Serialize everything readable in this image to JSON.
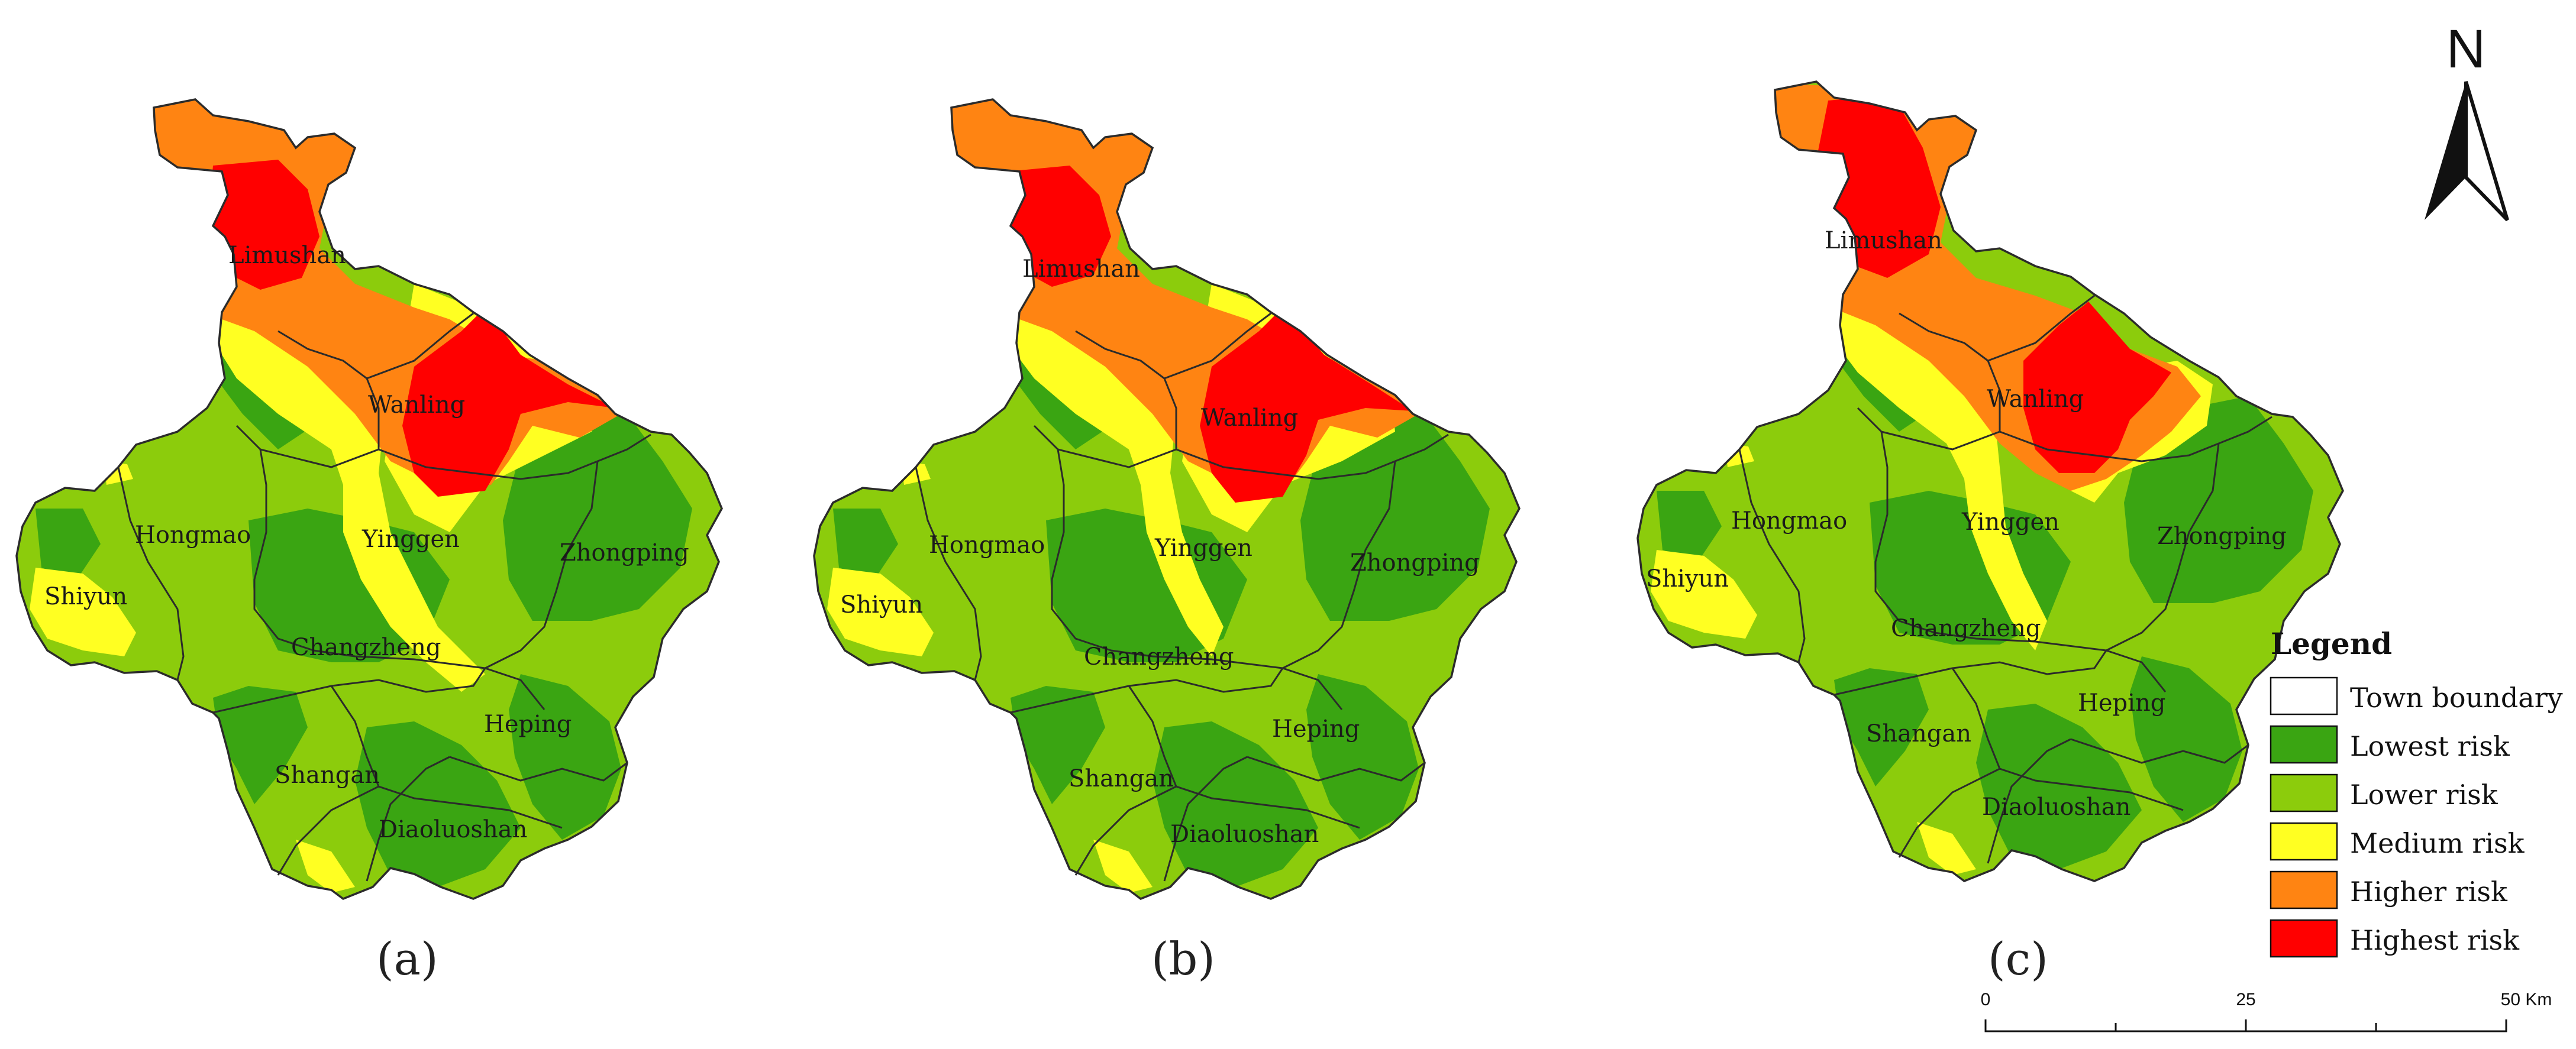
{
  "colors": {
    "lowest": "#3aa512",
    "lower": "#8ccc0c",
    "medium": "#ffff22",
    "higher": "#ff8412",
    "highest": "#ff0000",
    "boundary": "#2b2b2b"
  },
  "panels": [
    {
      "id": "a",
      "caption": "(a)",
      "labels": {
        "limushan": "Limushan",
        "wanling": "Wanling",
        "hongmao": "Hongmao",
        "yinggen": "Yinggen",
        "zhongping": "Zhongping",
        "shiyun": "Shiyun",
        "changzheng": "Changzheng",
        "heping": "Heping",
        "shangan": "Shangan",
        "diaoluoshan": "Diaoluoshan"
      }
    },
    {
      "id": "b",
      "caption": "(b)",
      "labels": {
        "limushan": "Limushan",
        "wanling": "Wanling",
        "hongmao": "Hongmao",
        "yinggen": "Yinggen",
        "zhongping": "Zhongping",
        "shiyun": "Shiyun",
        "changzheng": "Changzheng",
        "heping": "Heping",
        "shangan": "Shangan",
        "diaoluoshan": "Diaoluoshan"
      }
    },
    {
      "id": "c",
      "caption": "(c)",
      "labels": {
        "limushan": "Limushan",
        "wanling": "Wanling",
        "hongmao": "Hongmao",
        "yinggen": "Yinggen",
        "zhongping": "Zhongping",
        "shiyun": "Shiyun",
        "changzheng": "Changzheng",
        "heping": "Heping",
        "shangan": "Shangan",
        "diaoluoshan": "Diaoluoshan"
      }
    }
  ],
  "legend": {
    "title": "Legend",
    "items": [
      {
        "label": "Town boundary",
        "color": "#ffffff"
      },
      {
        "label": "Lowest risk",
        "color": "#3aa512"
      },
      {
        "label": "Lower risk",
        "color": "#8ccc0c"
      },
      {
        "label": "Medium risk",
        "color": "#ffff22"
      },
      {
        "label": "Higher risk",
        "color": "#ff8412"
      },
      {
        "label": "Highest risk",
        "color": "#ff0000"
      }
    ]
  },
  "north_arrow": {
    "label": "N"
  },
  "scale_bar": {
    "labels": [
      "0",
      "25",
      "50 Km"
    ]
  }
}
